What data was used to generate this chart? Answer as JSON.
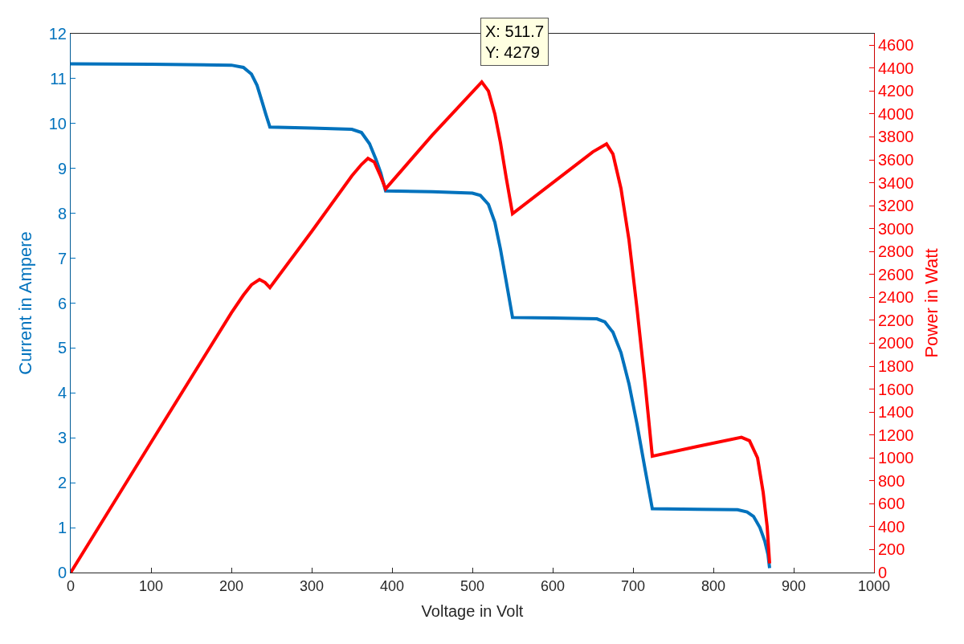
{
  "chart_data": {
    "type": "line",
    "xlabel": "Voltage in Volt",
    "ylabel": "Current in Ampere",
    "y2label": "Power in Watt",
    "xlim": [
      0,
      1000
    ],
    "xticks": [
      0,
      100,
      200,
      300,
      400,
      500,
      600,
      700,
      800,
      900,
      1000
    ],
    "ylim": [
      0,
      12
    ],
    "yticks": [
      0,
      1,
      2,
      3,
      4,
      5,
      6,
      7,
      8,
      9,
      10,
      11,
      12
    ],
    "y2lim": [
      0,
      4700
    ],
    "y2ticks": [
      0,
      200,
      400,
      600,
      800,
      1000,
      1200,
      1400,
      1600,
      1800,
      2000,
      2200,
      2400,
      2600,
      2800,
      3000,
      3200,
      3400,
      3600,
      3800,
      4000,
      4200,
      4400,
      4600
    ],
    "marker": "none",
    "line_style": "solid",
    "series": [
      {
        "color": "#0072bd",
        "x": [
          0,
          100,
          200,
          215,
          225,
          232,
          238,
          243,
          248,
          300,
          350,
          362,
          372,
          380,
          386,
          392,
          450,
          500,
          510,
          520,
          528,
          535,
          542,
          550,
          600,
          655,
          665,
          675,
          685,
          695,
          705,
          715,
          724,
          780,
          830,
          842,
          850,
          858,
          864,
          868,
          870
        ],
        "values": [
          11.33,
          11.32,
          11.3,
          11.25,
          11.1,
          10.85,
          10.5,
          10.2,
          9.92,
          9.9,
          9.87,
          9.8,
          9.55,
          9.2,
          8.9,
          8.5,
          8.48,
          8.45,
          8.4,
          8.2,
          7.8,
          7.2,
          6.5,
          5.68,
          5.67,
          5.65,
          5.58,
          5.35,
          4.9,
          4.2,
          3.3,
          2.3,
          1.42,
          1.41,
          1.4,
          1.35,
          1.25,
          1.0,
          0.7,
          0.4,
          0.1
        ]
      },
      {
        "color": "#ff0000",
        "axis": "y2",
        "x": [
          0,
          100,
          200,
          215,
          225,
          235,
          242,
          248,
          300,
          350,
          362,
          370,
          378,
          385,
          392,
          450,
          511.7,
          520,
          528,
          535,
          542,
          550,
          600,
          650,
          667,
          675,
          685,
          695,
          705,
          715,
          724,
          780,
          835,
          845,
          855,
          862,
          867,
          870
        ],
        "values": [
          0,
          1135,
          2265,
          2420,
          2510,
          2556,
          2530,
          2486,
          2975,
          3460,
          3560,
          3613,
          3580,
          3470,
          3347,
          3815,
          4279,
          4200,
          4000,
          3750,
          3450,
          3130,
          3400,
          3670,
          3739,
          3650,
          3350,
          2900,
          2300,
          1650,
          1015,
          1100,
          1180,
          1150,
          1000,
          700,
          400,
          80
        ]
      }
    ],
    "annotations": [
      "X: 511.7\nY: 4279"
    ]
  }
}
